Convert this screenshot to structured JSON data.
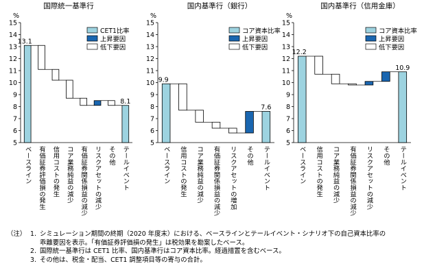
{
  "chart_data": [
    {
      "type": "waterfall",
      "title": "国際統一基準行",
      "unit_label": "%",
      "ylim": [
        5,
        15
      ],
      "yticks": [
        5,
        6,
        7,
        8,
        9,
        10,
        11,
        12,
        13,
        14,
        15
      ],
      "grid": false,
      "legend_position": "top-right",
      "legend": [
        "CET1比率",
        "上昇要因",
        "低下要因"
      ],
      "steps": [
        {
          "label": "ベースライン",
          "kind": "total",
          "value": 13.1,
          "value_label": "13.1"
        },
        {
          "label": "有価証券評価損の発生",
          "kind": "decrease",
          "value": -2.0
        },
        {
          "label": "信用コストの発生",
          "kind": "decrease",
          "value": -0.9
        },
        {
          "label": "コア業務純益の減少",
          "kind": "decrease",
          "value": -1.5
        },
        {
          "label": "有価証券関係損益の減少",
          "kind": "decrease",
          "value": -0.6
        },
        {
          "label": "リスクアセットの減少",
          "kind": "increase",
          "value": 0.4
        },
        {
          "label": "その他",
          "kind": "decrease",
          "value": -0.4
        },
        {
          "label": "テールイベント",
          "kind": "total",
          "value": 8.1,
          "value_label": "8.1"
        }
      ]
    },
    {
      "type": "waterfall",
      "title": "国内基準行（銀行）",
      "unit_label": "%",
      "ylim": [
        5,
        15
      ],
      "yticks": [
        5,
        6,
        7,
        8,
        9,
        10,
        11,
        12,
        13,
        14,
        15
      ],
      "grid": false,
      "legend_position": "top-right",
      "legend": [
        "コア資本比率",
        "上昇要因",
        "低下要因"
      ],
      "steps": [
        {
          "label": "ベースライン",
          "kind": "total",
          "value": 9.9,
          "value_label": "9.9"
        },
        {
          "label": "信用コストの発生",
          "kind": "decrease",
          "value": -2.2
        },
        {
          "label": "コア業務純益の減少",
          "kind": "decrease",
          "value": -1.0
        },
        {
          "label": "有価証券関係損益の減少",
          "kind": "decrease",
          "value": -0.5
        },
        {
          "label": "リスクアセットの増加",
          "kind": "decrease",
          "value": -0.4
        },
        {
          "label": "その他",
          "kind": "increase",
          "value": 1.8
        },
        {
          "label": "テールイベント",
          "kind": "total",
          "value": 7.6,
          "value_label": "7.6"
        }
      ]
    },
    {
      "type": "waterfall",
      "title": "国内基準行（信用金庫）",
      "unit_label": "%",
      "ylim": [
        5,
        15
      ],
      "yticks": [
        5,
        6,
        7,
        8,
        9,
        10,
        11,
        12,
        13,
        14,
        15
      ],
      "grid": false,
      "legend_position": "top-right",
      "legend": [
        "コア資本比率",
        "上昇要因",
        "低下要因"
      ],
      "steps": [
        {
          "label": "ベースライン",
          "kind": "total",
          "value": 12.2,
          "value_label": "12.2"
        },
        {
          "label": "信用コストの発生",
          "kind": "decrease",
          "value": -1.5
        },
        {
          "label": "コア業務純益の減少",
          "kind": "decrease",
          "value": -0.8
        },
        {
          "label": "有価証券関係損益の減少",
          "kind": "decrease",
          "value": -0.1
        },
        {
          "label": "リスクアセットの減少",
          "kind": "increase",
          "value": 0.3
        },
        {
          "label": "その他",
          "kind": "increase",
          "value": 0.8
        },
        {
          "label": "テールイベント",
          "kind": "total",
          "value": 10.9,
          "value_label": "10.9"
        }
      ]
    }
  ],
  "colors": {
    "total_fill": "#9dd3e0",
    "increase_fill": "#1a66b0",
    "decrease_fill": "#ffffff",
    "stroke": "#000000"
  },
  "notes": {
    "lead": "（注）",
    "items": [
      {
        "num": "1.",
        "lines": [
          "シミュレーション期間の終期（2020 年度末）における、ベースラインとテールイベント・シナリオ下の自己資本比率の",
          "乖離要因を表示。「有価証券評価損の発生」は税効果を勘案したベース。"
        ]
      },
      {
        "num": "2.",
        "lines": [
          "国際統一基準行は CET1 比率、国内基準行はコア資本比率。経過措置を含むベース。"
        ]
      },
      {
        "num": "3.",
        "lines": [
          "その他は、税金・配当、CET1 調整項目等の寄与の合計。"
        ]
      }
    ]
  }
}
